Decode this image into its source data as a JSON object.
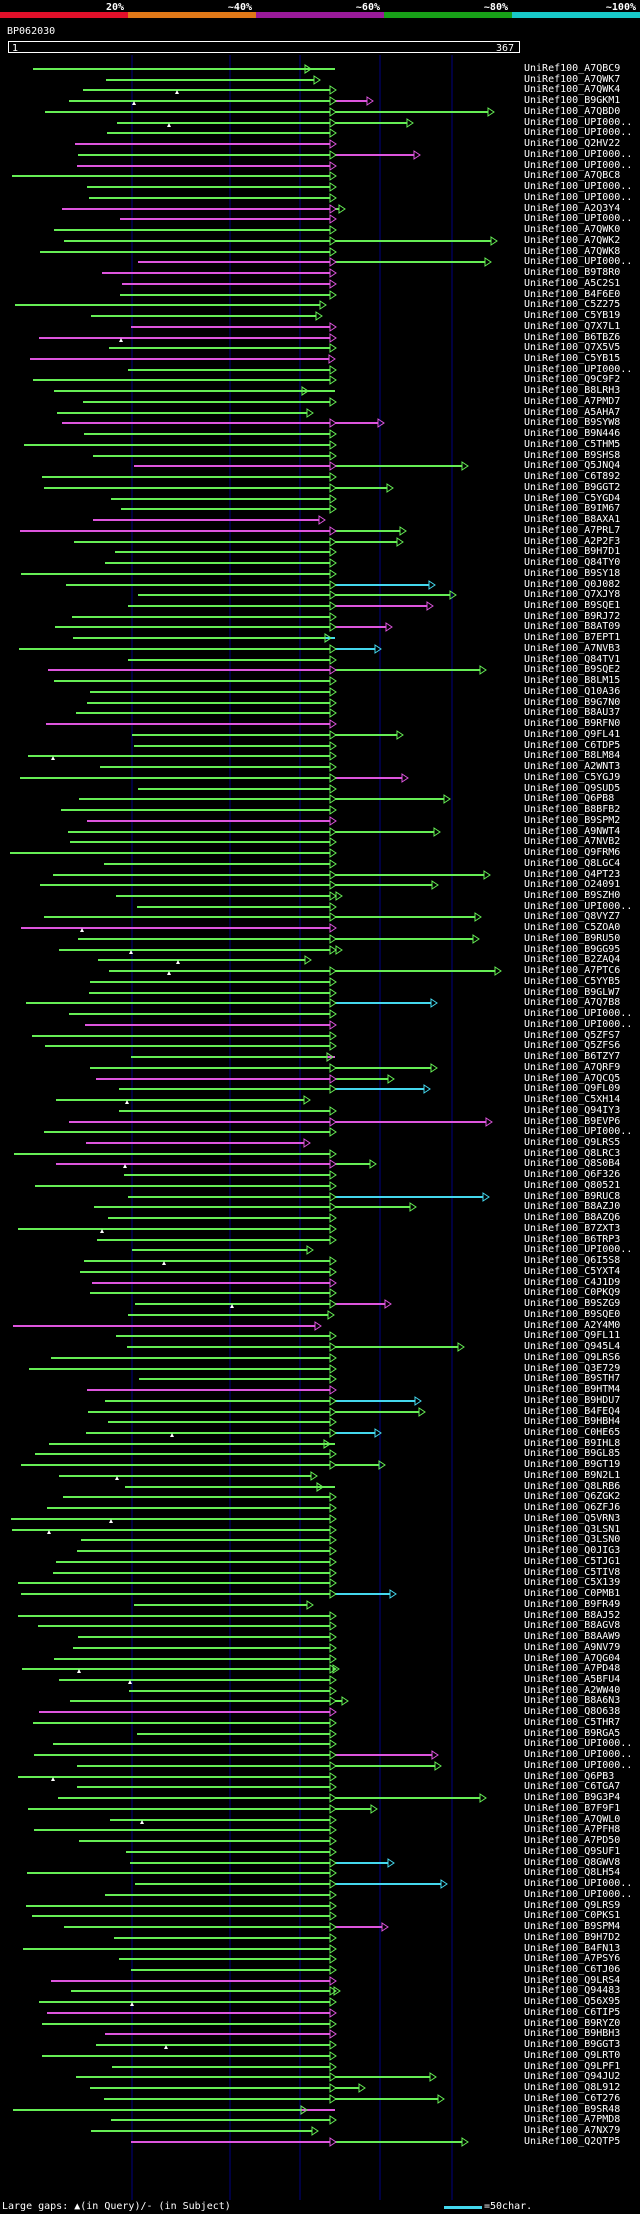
{
  "title": "BP062030",
  "scale_labels": [
    "20%",
    "~40%",
    "~60%",
    "~80%",
    "~100%"
  ],
  "scale_colors": [
    "#e0102a",
    "#e07818",
    "#9a1a9a",
    "#18a018",
    "#18c8c8"
  ],
  "ruler": {
    "start": "1",
    "end": "367"
  },
  "colors": {
    "cyan": "#44d8ee",
    "green": "#66ee55",
    "magenta": "#dd55dd",
    "grid": "#000080"
  },
  "legend": {
    "text": "Large gaps: ▲(in Query)/- (in Subject)",
    "scale": "=50char."
  },
  "hits": [
    {
      "name": "UniRef100_A7QBC9"
    },
    {
      "name": "UniRef100_A7QWK7"
    },
    {
      "name": "UniRef100_A7QWK4"
    },
    {
      "name": "UniRef100_B9GKM1"
    },
    {
      "name": "UniRef100_A7QBD0"
    },
    {
      "name": "UniRef100_UPI000.."
    },
    {
      "name": "UniRef100_UPI000.."
    },
    {
      "name": "UniRef100_Q2HV22"
    },
    {
      "name": "UniRef100_UPI000.."
    },
    {
      "name": "UniRef100_UPI000.."
    },
    {
      "name": "UniRef100_A7QBC8"
    },
    {
      "name": "UniRef100_UPI000.."
    },
    {
      "name": "UniRef100_UPI000.."
    },
    {
      "name": "UniRef100_A2Q3Y4"
    },
    {
      "name": "UniRef100_UPI000.."
    },
    {
      "name": "UniRef100_A7QWK0"
    },
    {
      "name": "UniRef100_A7QWK2"
    },
    {
      "name": "UniRef100_A7QWK8"
    },
    {
      "name": "UniRef100_UPI000.."
    },
    {
      "name": "UniRef100_B9T8R0"
    },
    {
      "name": "UniRef100_A5C2S1"
    },
    {
      "name": "UniRef100_B4F6E0"
    },
    {
      "name": "UniRef100_C5Z275"
    },
    {
      "name": "UniRef100_C5YB19"
    },
    {
      "name": "UniRef100_Q7X7L1"
    },
    {
      "name": "UniRef100_B6TBZ6"
    },
    {
      "name": "UniRef100_Q7X5V5"
    },
    {
      "name": "UniRef100_C5YB15"
    },
    {
      "name": "UniRef100_UPI000.."
    },
    {
      "name": "UniRef100_Q9C9F2"
    },
    {
      "name": "UniRef100_B8LRH3"
    },
    {
      "name": "UniRef100_A7PMD7"
    },
    {
      "name": "UniRef100_A5AHA7"
    },
    {
      "name": "UniRef100_B9SYW8"
    },
    {
      "name": "UniRef100_B9N446"
    },
    {
      "name": "UniRef100_C5THM5"
    },
    {
      "name": "UniRef100_B9SHS8"
    },
    {
      "name": "UniRef100_Q5JNQ4"
    },
    {
      "name": "UniRef100_C6T892"
    },
    {
      "name": "UniRef100_B9GGT2"
    },
    {
      "name": "UniRef100_C5YGD4"
    },
    {
      "name": "UniRef100_B9IM67"
    },
    {
      "name": "UniRef100_B8AXA1"
    },
    {
      "name": "UniRef100_A7PRL7"
    },
    {
      "name": "UniRef100_A2P2F3"
    },
    {
      "name": "UniRef100_B9H7D1"
    },
    {
      "name": "UniRef100_Q84TY0"
    },
    {
      "name": "UniRef100_B9SY18"
    },
    {
      "name": "UniRef100_Q0J082"
    },
    {
      "name": "UniRef100_Q7XJY8"
    },
    {
      "name": "UniRef100_B9SQE1"
    },
    {
      "name": "UniRef100_B9RJ72"
    },
    {
      "name": "UniRef100_B8AT09"
    },
    {
      "name": "UniRef100_B7EPT1"
    },
    {
      "name": "UniRef100_A7NVB3"
    },
    {
      "name": "UniRef100_Q84TV1"
    },
    {
      "name": "UniRef100_B9SQE2"
    },
    {
      "name": "UniRef100_B8LM15"
    },
    {
      "name": "UniRef100_Q10A36"
    },
    {
      "name": "UniRef100_B9G7N0"
    },
    {
      "name": "UniRef100_B8AU37"
    },
    {
      "name": "UniRef100_B9RFN0"
    },
    {
      "name": "UniRef100_Q9FL41"
    },
    {
      "name": "UniRef100_C6TDP5"
    },
    {
      "name": "UniRef100_B8LM84"
    },
    {
      "name": "UniRef100_A2WNT3"
    },
    {
      "name": "UniRef100_C5YGJ9"
    },
    {
      "name": "UniRef100_Q9SUD5"
    },
    {
      "name": "UniRef100_Q6PB8"
    },
    {
      "name": "UniRef100_B8BFB2"
    },
    {
      "name": "UniRef100_B9SPM2"
    },
    {
      "name": "UniRef100_A9NWT4"
    },
    {
      "name": "UniRef100_A7NVB2"
    },
    {
      "name": "UniRef100_Q9FRM6"
    },
    {
      "name": "UniRef100_Q8LGC4"
    },
    {
      "name": "UniRef100_Q4PT23"
    },
    {
      "name": "UniRef100_O24091"
    },
    {
      "name": "UniRef100_B9SZH0"
    },
    {
      "name": "UniRef100_UPI000.."
    },
    {
      "name": "UniRef100_Q8VYZ7"
    },
    {
      "name": "UniRef100_C5ZOA0"
    },
    {
      "name": "UniRef100_B9RU50"
    },
    {
      "name": "UniRef100_B9GG95"
    },
    {
      "name": "UniRef100_B2ZAQ4"
    },
    {
      "name": "UniRef100_A7PTC6"
    },
    {
      "name": "UniRef100_C5YYB5"
    },
    {
      "name": "UniRef100_B9GLW7"
    },
    {
      "name": "UniRef100_A7Q7B8"
    },
    {
      "name": "UniRef100_UPI000.."
    },
    {
      "name": "UniRef100_UPI000.."
    },
    {
      "name": "UniRef100_Q5ZFS7"
    },
    {
      "name": "UniRef100_Q5ZFS6"
    },
    {
      "name": "UniRef100_B6TZY7"
    },
    {
      "name": "UniRef100_A7QRF9"
    },
    {
      "name": "UniRef100_A7QCQ5"
    },
    {
      "name": "UniRef100_Q9FL09"
    },
    {
      "name": "UniRef100_C5XH14"
    },
    {
      "name": "UniRef100_Q94IY3"
    },
    {
      "name": "UniRef100_B9EVP6"
    },
    {
      "name": "UniRef100_UPI000.."
    },
    {
      "name": "UniRef100_Q9LRS5"
    },
    {
      "name": "UniRef100_Q8LRC3"
    },
    {
      "name": "UniRef100_Q8S0B4"
    },
    {
      "name": "UniRef100_Q6F326"
    },
    {
      "name": "UniRef100_Q80521"
    },
    {
      "name": "UniRef100_B9RUC8"
    },
    {
      "name": "UniRef100_B8AZJ0"
    },
    {
      "name": "UniRef100_B8AZQ6"
    },
    {
      "name": "UniRef100_B7ZXT3"
    },
    {
      "name": "UniRef100_B6TRP3"
    },
    {
      "name": "UniRef100_UPI000.."
    },
    {
      "name": "UniRef100_Q6I5S8"
    },
    {
      "name": "UniRef100_C5YXT4"
    },
    {
      "name": "UniRef100_C4J1D9"
    },
    {
      "name": "UniRef100_C0PKQ9"
    },
    {
      "name": "UniRef100_B9SZG9"
    },
    {
      "name": "UniRef100_B9SQE0"
    },
    {
      "name": "UniRef100_A2Y4M0"
    },
    {
      "name": "UniRef100_Q9FL11"
    },
    {
      "name": "UniRef100_Q945L4"
    },
    {
      "name": "UniRef100_Q9LRS6"
    },
    {
      "name": "UniRef100_Q3E729"
    },
    {
      "name": "UniRef100_B9STH7"
    },
    {
      "name": "UniRef100_B9HTM4"
    },
    {
      "name": "UniRef100_B9HDU7"
    },
    {
      "name": "UniRef100_B4FEQ4"
    },
    {
      "name": "UniRef100_B9HBH4"
    },
    {
      "name": "UniRef100_C0HE65"
    },
    {
      "name": "UniRef100_B9IHL8"
    },
    {
      "name": "UniRef100_B9GL85"
    },
    {
      "name": "UniRef100_B9GT19"
    },
    {
      "name": "UniRef100_B9N2L1"
    },
    {
      "name": "UniRef100_Q8LRB6"
    },
    {
      "name": "UniRef100_Q6ZGK2"
    },
    {
      "name": "UniRef100_Q6ZFJ6"
    },
    {
      "name": "UniRef100_Q5VRN3"
    },
    {
      "name": "UniRef100_Q3LSN1"
    },
    {
      "name": "UniRef100_Q3LSN0"
    },
    {
      "name": "UniRef100_Q0JIG3"
    },
    {
      "name": "UniRef100_C5TJG1"
    },
    {
      "name": "UniRef100_C5TIV8"
    },
    {
      "name": "UniRef100_C5X139"
    },
    {
      "name": "UniRef100_C0PMB1"
    },
    {
      "name": "UniRef100_B9FR49"
    },
    {
      "name": "UniRef100_B8AJ52"
    },
    {
      "name": "UniRef100_B8AGV8"
    },
    {
      "name": "UniRef100_B8AAW9"
    },
    {
      "name": "UniRef100_A9NV79"
    },
    {
      "name": "UniRef100_A7QG04"
    },
    {
      "name": "UniRef100_A7PD48"
    },
    {
      "name": "UniRef100_A5BFU4"
    },
    {
      "name": "UniRef100_A2WW40"
    },
    {
      "name": "UniRef100_B8A6N3"
    },
    {
      "name": "UniRef100_Q8O638"
    },
    {
      "name": "UniRef100_C5THR7"
    },
    {
      "name": "UniRef100_B9RGA5"
    },
    {
      "name": "UniRef100_UPI000.."
    },
    {
      "name": "UniRef100_UPI000.."
    },
    {
      "name": "UniRef100_UPI000.."
    },
    {
      "name": "UniRef100_Q6PB3"
    },
    {
      "name": "UniRef100_C6TGA7"
    },
    {
      "name": "UniRef100_B9G3P4"
    },
    {
      "name": "UniRef100_B7F9F1"
    },
    {
      "name": "UniRef100_A7QWL0"
    },
    {
      "name": "UniRef100_A7PFH8"
    },
    {
      "name": "UniRef100_A7PD50"
    },
    {
      "name": "UniRef100_Q9SUF1"
    },
    {
      "name": "UniRef100_Q8GWV8"
    },
    {
      "name": "UniRef100_Q8LH54"
    },
    {
      "name": "UniRef100_UPI000.."
    },
    {
      "name": "UniRef100_UPI000.."
    },
    {
      "name": "UniRef100_Q9LRS9"
    },
    {
      "name": "UniRef100_C0PKS1"
    },
    {
      "name": "UniRef100_B9SPM4"
    },
    {
      "name": "UniRef100_B9H7D2"
    },
    {
      "name": "UniRef100_B4FN13"
    },
    {
      "name": "UniRef100_A7PSY6"
    },
    {
      "name": "UniRef100_C6TJ06"
    },
    {
      "name": "UniRef100_Q9LRS4"
    },
    {
      "name": "UniRef100_Q94483"
    },
    {
      "name": "UniRef100_Q56X95"
    },
    {
      "name": "UniRef100_C6TIP5"
    },
    {
      "name": "UniRef100_B9RYZ0"
    },
    {
      "name": "UniRef100_B9HBH3"
    },
    {
      "name": "UniRef100_B9GGT3"
    },
    {
      "name": "UniRef100_Q9LRT0"
    },
    {
      "name": "UniRef100_Q9LPF1"
    },
    {
      "name": "UniRef100_Q94JU2"
    },
    {
      "name": "UniRef100_Q8L912"
    },
    {
      "name": "UniRef100_C6T276"
    },
    {
      "name": "UniRef100_B9SR48"
    },
    {
      "name": "UniRef100_A7PMD8"
    },
    {
      "name": "UniRef100_A7NX79"
    },
    {
      "name": "UniRef100_Q2QTP5"
    }
  ]
}
